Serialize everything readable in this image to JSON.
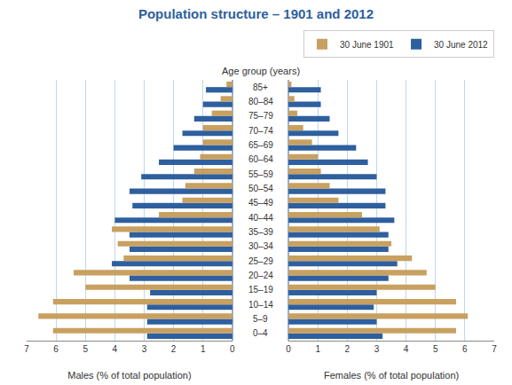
{
  "chart_data": [
    {
      "type": "bar",
      "orientation": "horizontal",
      "title": "Population structure – 1901 and 2012",
      "subtitle": "Age group (years)",
      "xlabel": "Males (% of total population)",
      "categories": [
        "0–4",
        "5–9",
        "10–14",
        "15–19",
        "20–24",
        "25–29",
        "30–34",
        "35–39",
        "40–44",
        "45–49",
        "50–54",
        "55–59",
        "60–64",
        "65–69",
        "70–74",
        "75–79",
        "80–84",
        "85+"
      ],
      "series": [
        {
          "name": "30 June 1901",
          "color": "#C8A060",
          "values": [
            6.1,
            6.6,
            6.1,
            5.0,
            5.4,
            3.7,
            3.9,
            4.1,
            2.5,
            1.7,
            1.6,
            1.3,
            1.1,
            1.0,
            1.0,
            0.7,
            0.4,
            0.2
          ]
        },
        {
          "name": "30 June 2012",
          "color": "#2E5F9E",
          "values": [
            2.9,
            2.9,
            2.9,
            2.8,
            3.5,
            4.1,
            3.5,
            3.5,
            4.0,
            3.4,
            3.5,
            3.1,
            2.5,
            2.0,
            1.7,
            1.3,
            1.0,
            0.9
          ]
        }
      ],
      "xlim": [
        7,
        0
      ],
      "xticks": [
        0,
        1,
        2,
        3,
        4,
        5,
        6,
        7
      ],
      "grid": true,
      "legend": "upper right"
    },
    {
      "type": "bar",
      "orientation": "horizontal",
      "xlabel": "Females (% of total population)",
      "categories": [
        "0–4",
        "5–9",
        "10–14",
        "15–19",
        "20–24",
        "25–29",
        "30–34",
        "35–39",
        "40–44",
        "45–49",
        "50–54",
        "55–59",
        "60–64",
        "65–69",
        "70–74",
        "75–79",
        "80–84",
        "85+"
      ],
      "series": [
        {
          "name": "30 June 1901",
          "color": "#C8A060",
          "values": [
            5.7,
            6.1,
            5.7,
            5.0,
            4.7,
            4.2,
            3.5,
            3.1,
            2.5,
            1.7,
            1.4,
            1.1,
            1.0,
            0.8,
            0.5,
            0.3,
            0.2,
            0.1
          ]
        },
        {
          "name": "30 June 2012",
          "color": "#2E5F9E",
          "values": [
            3.2,
            3.0,
            2.9,
            3.0,
            3.4,
            3.7,
            3.4,
            3.4,
            3.6,
            3.3,
            3.3,
            3.0,
            2.7,
            2.3,
            1.7,
            1.4,
            1.1,
            1.1
          ]
        }
      ],
      "xlim": [
        0,
        7
      ],
      "xticks": [
        0,
        1,
        2,
        3,
        4,
        5,
        6,
        7
      ],
      "grid": true
    }
  ]
}
